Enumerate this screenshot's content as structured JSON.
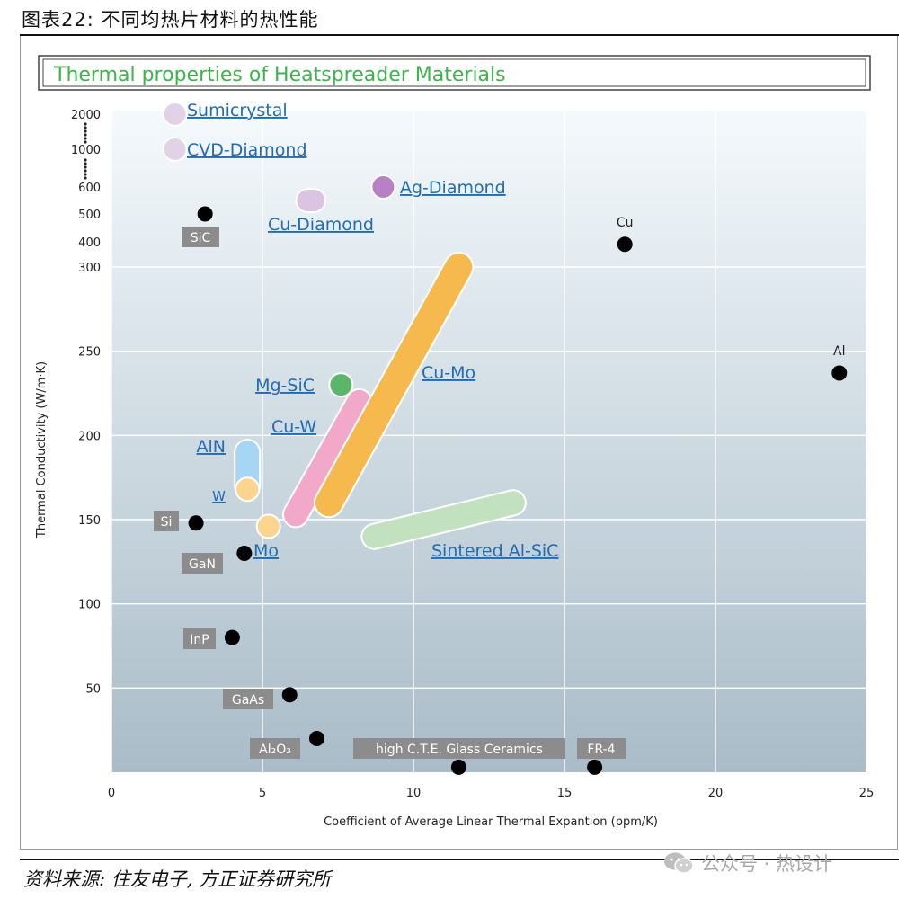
{
  "figure": {
    "caption_cn": "图表22: 不同均热片材料的热性能",
    "source_cn": "资料来源: 住友电子, 方正证券研究所",
    "watermark": "公众号 · 热设计",
    "watermark_icon": "wechat-icon"
  },
  "chart_data": {
    "type": "scatter",
    "title": "Thermal properties of Heatspreader Materials",
    "xlabel": "Coefficient of Average Linear Thermal Expantion (ppm/K)",
    "ylabel": "Thermal Conductivity (W/m·K)",
    "xlim": [
      0,
      25
    ],
    "x_ticks": [
      "0",
      "5",
      "10",
      "15",
      "20",
      "25"
    ],
    "y_ticks_linear": [
      "50",
      "100",
      "150",
      "200",
      "250",
      "300"
    ],
    "y_ticks_upper": [
      "400",
      "500",
      "600",
      "1000",
      "2000"
    ],
    "y_scale": "broken: linear 0–300, compressed above 300",
    "grid": true,
    "colors": {
      "plot_bg_top": "#f4f9fc",
      "plot_bg_bottom": "#a9bcc8",
      "title_green": "#39b54a",
      "link_blue": "#1f6cb4",
      "label_box": "#8c8c8c",
      "cu_mo": "#f6b94d",
      "cu_w": "#f2a9c9",
      "mg_sic": "#5bb66a",
      "aln": "#a6d6f3",
      "w_mo": "#fdd48e",
      "sintered": "#c2e2bf",
      "cvd": "#e2d2e8",
      "ag_diamond": "#b682c3",
      "cu_diamond": "#d9c4e2"
    },
    "points": [
      {
        "name": "SiC",
        "x": 3.1,
        "y": 500
      },
      {
        "name": "Cu",
        "x": 17.0,
        "y": 390
      },
      {
        "name": "Al",
        "x": 24.1,
        "y": 237
      },
      {
        "name": "Si",
        "x": 2.8,
        "y": 148
      },
      {
        "name": "GaN",
        "x": 4.4,
        "y": 130
      },
      {
        "name": "InP",
        "x": 4.0,
        "y": 80
      },
      {
        "name": "GaAs",
        "x": 5.9,
        "y": 46
      },
      {
        "name": "Al₂O₃",
        "x": 6.8,
        "y": 20
      },
      {
        "name": "high C.T.E. Glass Ceramics",
        "x": 11.5,
        "y": 3
      },
      {
        "name": "FR-4",
        "x": 16.0,
        "y": 3
      }
    ],
    "regions": [
      {
        "name": "Sumicrystal",
        "x": [
          2.1,
          2.1
        ],
        "y": [
          2000,
          2000
        ]
      },
      {
        "name": "CVD-Diamond",
        "x": [
          2.1,
          2.1
        ],
        "y": [
          1000,
          1000
        ]
      },
      {
        "name": "Ag-Diamond",
        "x": [
          9.0,
          9.0
        ],
        "y": [
          600,
          600
        ]
      },
      {
        "name": "Cu-Diamond",
        "x": [
          6.5,
          6.7
        ],
        "y": [
          550,
          550
        ]
      },
      {
        "name": "Cu-Mo",
        "x": [
          7.2,
          11.5
        ],
        "y": [
          160,
          300
        ]
      },
      {
        "name": "Cu-W",
        "x": [
          6.1,
          8.2
        ],
        "y": [
          153,
          220
        ]
      },
      {
        "name": "Mg-SiC",
        "x": [
          7.6,
          7.6
        ],
        "y": [
          230,
          230
        ]
      },
      {
        "name": "AlN",
        "x": [
          4.5,
          4.5
        ],
        "y": [
          170,
          190
        ]
      },
      {
        "name": "W",
        "x": [
          4.5,
          4.5
        ],
        "y": [
          168,
          168
        ]
      },
      {
        "name": "Mo",
        "x": [
          5.2,
          5.2
        ],
        "y": [
          146,
          146
        ]
      },
      {
        "name": "Sintered Al-SiC",
        "x": [
          8.7,
          13.3
        ],
        "y": [
          140,
          160
        ]
      }
    ]
  }
}
